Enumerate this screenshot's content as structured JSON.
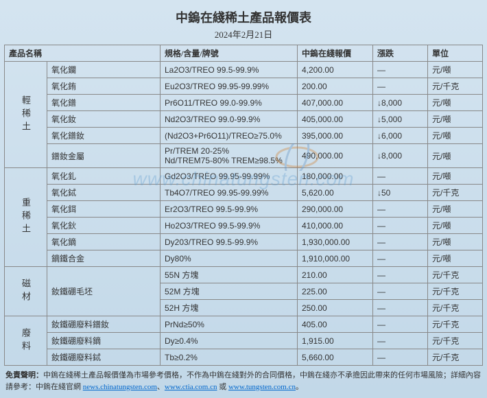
{
  "title": "中鎢在綫稀土產品報價表",
  "date": "2024年2月21日",
  "columns": [
    "產品名稱",
    "規格/含量/牌號",
    "中鎢在綫報價",
    "漲跌",
    "單位"
  ],
  "col_widths": [
    "100px",
    "200px",
    "110px",
    "80px",
    "80px"
  ],
  "header_font_size": 12,
  "title_font_size": 18,
  "groups": [
    {
      "label": "輕稀土",
      "rows": [
        {
          "name": "氧化鑭",
          "spec": "La2O3/TREO 99.5-99.9%",
          "price": "4,200.00",
          "change": "—",
          "unit": "元/噸"
        },
        {
          "name": "氧化銪",
          "spec": "Eu2O3/TREO 99.95-99.99%",
          "price": "200.00",
          "change": "—",
          "unit": "元/千克"
        },
        {
          "name": "氧化鐠",
          "spec": "Pr6O11/TREO 99.0-99.9%",
          "price": "407,000.00",
          "change": "↓8,000",
          "unit": "元/噸"
        },
        {
          "name": "氧化釹",
          "spec": "Nd2O3/TREO 99.0-99.9%",
          "price": "405,000.00",
          "change": "↓5,000",
          "unit": "元/噸"
        },
        {
          "name": "氧化鐠釹",
          "spec": "(Nd2O3+Pr6O11)/TREO≥75.0%",
          "price": "395,000.00",
          "change": "↓6,000",
          "unit": "元/噸"
        },
        {
          "name": "鐠釹金屬",
          "spec": "Pr/TREM 20-25%\nNd/TREM75-80% TREM≥98.5%",
          "price": "490,000.00",
          "change": "↓8,000",
          "unit": "元/噸"
        }
      ]
    },
    {
      "label": "重稀土",
      "rows": [
        {
          "name": "氧化釓",
          "spec": "Gd2O3/TREO 99.95-99.99%",
          "price": "180,000.00",
          "change": "—",
          "unit": "元/噸"
        },
        {
          "name": "氧化鋱",
          "spec": "Tb4O7/TREO 99.95-99.99%",
          "price": "5,620.00",
          "change": "↓50",
          "unit": "元/千克"
        },
        {
          "name": "氧化鉺",
          "spec": "Er2O3/TREO 99.5-99.9%",
          "price": "290,000.00",
          "change": "—",
          "unit": "元/噸"
        },
        {
          "name": "氧化鈥",
          "spec": "Ho2O3/TREO 99.5-99.9%",
          "price": "410,000.00",
          "change": "—",
          "unit": "元/噸"
        },
        {
          "name": "氧化鏑",
          "spec": "Dy203/TREO 99.5-99.9%",
          "price": "1,930,000.00",
          "change": "—",
          "unit": "元/噸"
        },
        {
          "name": "鏑鐵合金",
          "spec": "Dy80%",
          "price": "1,910,000.00",
          "change": "—",
          "unit": "元/噸"
        }
      ]
    },
    {
      "label": "磁材",
      "rows": [
        {
          "name": "釹鐵硼毛坯",
          "spec": "55N 方塊",
          "price": "210.00",
          "change": "—",
          "unit": "元/千克",
          "namespan": 3
        },
        {
          "name": "",
          "spec": "52M 方塊",
          "price": "225.00",
          "change": "—",
          "unit": "元/千克"
        },
        {
          "name": "",
          "spec": "52H 方塊",
          "price": "250.00",
          "change": "—",
          "unit": "元/千克"
        }
      ]
    },
    {
      "label": "廢料",
      "rows": [
        {
          "name": "釹鐵硼廢料鐠釹",
          "spec": "PrNd≥50%",
          "price": "405.00",
          "change": "—",
          "unit": "元/千克"
        },
        {
          "name": "釹鐵硼廢料鏑",
          "spec": "Dy≥0.4%",
          "price": "1,915.00",
          "change": "—",
          "unit": "元/千克"
        },
        {
          "name": "釹鐵硼廢料鋱",
          "spec": "Tb≥0.2%",
          "price": "5,660.00",
          "change": "—",
          "unit": "元/千克"
        }
      ]
    }
  ],
  "disclaimer_label": "免責聲明：",
  "disclaimer_text": "中鎢在綫稀土產品報價僅為市場參考價格，不作為中鎢在綫對外的合同價格，中鎢在綫亦不承擔因此帶來的任何市場風險；詳細內容請參考：中鎢在綫官網 ",
  "disclaimer_links": [
    "news.chinatungsten.com",
    "www.ctia.com.cn",
    "www.tungsten.com.cn"
  ],
  "disclaimer_joiners": [
    "、",
    " 或 "
  ],
  "disclaimer_suffix": "。",
  "watermark_text": "www.chinatungsten.com",
  "colors": {
    "background_top": "#d4e4f0",
    "background_bottom": "#c2d8e8",
    "border": "#888888",
    "text": "#333333",
    "link": "#0066cc",
    "watermark": "rgba(100,160,210,0.35)"
  }
}
